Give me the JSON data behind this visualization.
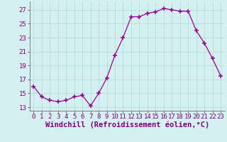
{
  "x": [
    0,
    1,
    2,
    3,
    4,
    5,
    6,
    7,
    8,
    9,
    10,
    11,
    12,
    13,
    14,
    15,
    16,
    17,
    18,
    19,
    20,
    21,
    22,
    23
  ],
  "y": [
    16,
    14.5,
    14,
    13.8,
    14,
    14.5,
    14.7,
    13.2,
    15,
    17.2,
    20.5,
    23,
    26,
    26,
    26.5,
    26.7,
    27.2,
    27,
    26.8,
    26.8,
    24,
    22.2,
    20,
    17.5
  ],
  "line_color": "#990099",
  "marker_color": "#990099",
  "bg_color": "#d4f0f0",
  "grid_color": "#b0d8d8",
  "xlabel": "Windchill (Refroidissement éolien,°C)",
  "yticks": [
    13,
    15,
    17,
    19,
    21,
    23,
    25,
    27
  ],
  "xticks": [
    0,
    1,
    2,
    3,
    4,
    5,
    6,
    7,
    8,
    9,
    10,
    11,
    12,
    13,
    14,
    15,
    16,
    17,
    18,
    19,
    20,
    21,
    22,
    23
  ],
  "ylim": [
    12.5,
    28.2
  ],
  "xlim": [
    -0.5,
    23.5
  ],
  "xlabel_fontsize": 7.5,
  "tick_fontsize": 6.5,
  "axis_label_color": "#800080",
  "tick_color": "#800080",
  "spine_color": "#808080"
}
